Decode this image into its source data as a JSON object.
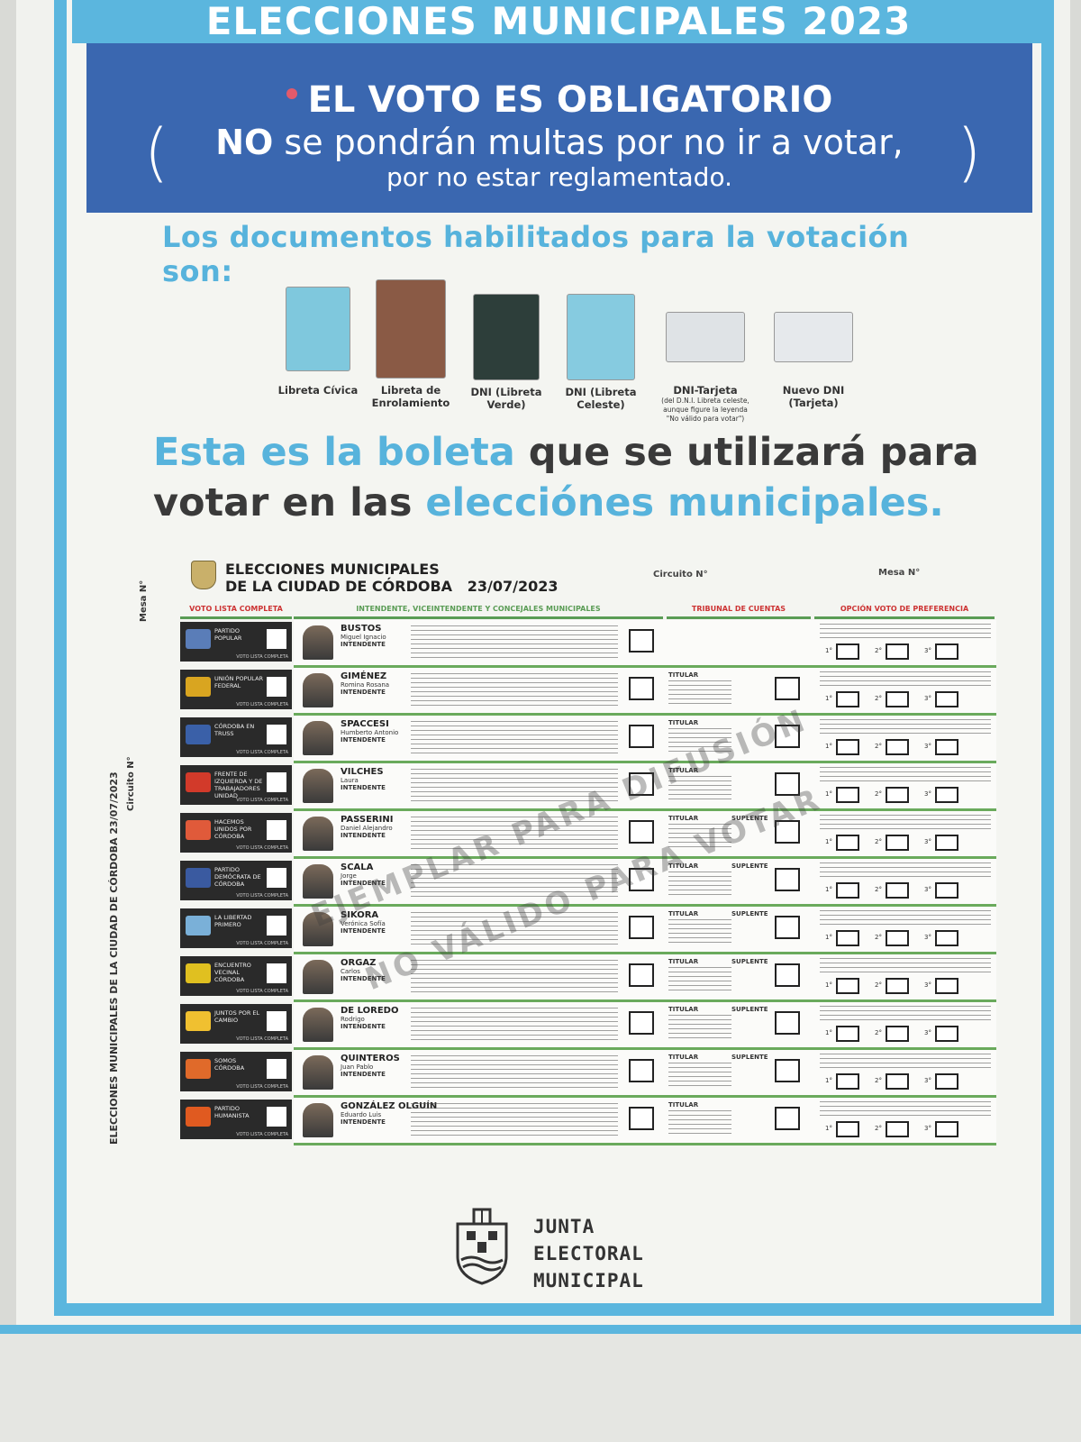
{
  "header": {
    "title": "ELECCIONES MUNICIPALES 2023"
  },
  "banner": {
    "line1": "EL VOTO ES OBLIGATORIO",
    "line2_bold": "NO",
    "line2_rest": " se pondrán multas por no ir a votar,",
    "line3": "por no estar reglamentado.",
    "paren_open": "(",
    "paren_close": ")"
  },
  "documents": {
    "title": "Los documentos habilitados para la votación son:",
    "items": [
      {
        "label": "Libreta Cívica",
        "color": "#7fc8dd"
      },
      {
        "label": "Libreta de Enrolamiento",
        "color": "#8a5a45"
      },
      {
        "label": "DNI (Libreta Verde)",
        "color": "#2d3e3a"
      },
      {
        "label": "DNI (Libreta Celeste)",
        "color": "#86cbe0"
      },
      {
        "label": "DNI-Tarjeta",
        "note": "(del D.N.I. Libreta celeste, aunque figure la leyenda \"No válido para votar\")",
        "color": "#dfe3e6"
      },
      {
        "label": "Nuevo DNI (Tarjeta)",
        "color": "#e6e9ec"
      }
    ]
  },
  "headline": {
    "part1": "Esta es la boleta",
    "part2": " que se utilizará para votar en las ",
    "part3": "elecciónes municipales."
  },
  "ballot": {
    "title1": "ELECCIONES MUNICIPALES",
    "title2": "DE LA CIUDAD DE CÓRDOBA",
    "date": "23/07/2023",
    "circuito": "Circuito N°",
    "mesa": "Mesa N°",
    "side_label": "ELECCIONES MUNICIPALES DE LA CIUDAD DE CÓRDOBA 23/07/2023",
    "col_vlc": "VOTO LISTA COMPLETA",
    "col_int": "INTENDENTE, VICEINTENDENTE Y CONCEJALES MUNICIPALES",
    "col_trib": "TRIBUNAL DE CUENTAS",
    "col_pref": "OPCIÓN VOTO DE PREFERENCIA",
    "vlc_short": "VOTO LISTA COMPLETA",
    "intendente": "INTENDENTE",
    "titular": "TITULAR",
    "suplente": "SUPLENTE",
    "pref_labels": [
      "1°",
      "2°",
      "3°"
    ],
    "rows": [
      {
        "party": "PARTIDO POPULAR",
        "surname": "BUSTOS",
        "first": "Miguel Ignacio",
        "color": "#5a7db8"
      },
      {
        "party": "UNIÓN POPULAR FEDERAL",
        "surname": "GIMÉNEZ",
        "first": "Romina Rosana",
        "color": "#d9a520"
      },
      {
        "party": "CÓRDOBA EN TRUSS",
        "surname": "SPACCESI",
        "first": "Humberto Antonio",
        "color": "#3a60a8"
      },
      {
        "party": "FRENTE DE IZQUIERDA Y DE TRABAJADORES UNIDAD",
        "surname": "VILCHES",
        "first": "Laura",
        "color": "#d23a2a"
      },
      {
        "party": "HACEMOS UNIDOS POR CÓRDOBA",
        "surname": "PASSERINI",
        "first": "Daniel Alejandro",
        "color": "#e05a3a"
      },
      {
        "party": "PARTIDO DEMÓCRATA DE CÓRDOBA",
        "surname": "SCALA",
        "first": "Jorge",
        "color": "#3a5aa0"
      },
      {
        "party": "LA LIBERTAD PRIMERO",
        "surname": "SIKORA",
        "first": "Verónica Sofía",
        "color": "#7ab0d8"
      },
      {
        "party": "ENCUENTRO VECINAL CÓRDOBA",
        "surname": "ORGAZ",
        "first": "Carlos",
        "color": "#e0c020"
      },
      {
        "party": "JUNTOS POR EL CAMBIO",
        "surname": "DE LOREDO",
        "first": "Rodrigo",
        "color": "#f0c030"
      },
      {
        "party": "SOMOS CÓRDOBA",
        "surname": "QUINTEROS",
        "first": "Juan Pablo",
        "color": "#e06a2a"
      },
      {
        "party": "PARTIDO HUMANISTA",
        "surname": "GONZÁLEZ OLGUÍN",
        "first": "Eduardo Luis",
        "color": "#e05a20"
      }
    ]
  },
  "stamp": {
    "line1": "EJEMPLAR PARA DIFUSIÓN",
    "line2": "NO VÁLIDO PARA VOTAR"
  },
  "junta": {
    "line1": "JUNTA",
    "line2": "ELECTORAL",
    "line3": "MUNICIPAL"
  },
  "colors": {
    "accent_blue": "#5bb6de",
    "banner_blue": "#3a67b0",
    "ballot_green": "#6aaa5c"
  }
}
